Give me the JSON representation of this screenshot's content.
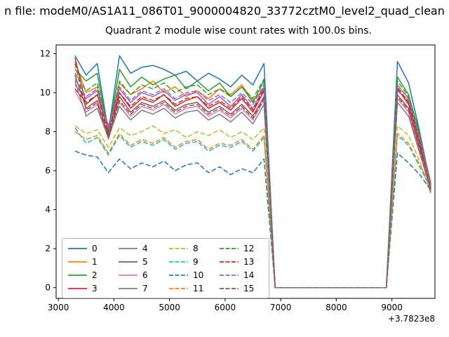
{
  "suptitle": "n file: modeM0/AS1A11_086T01_9000004820_33772cztM0_level2_quad_clean",
  "chart_data": {
    "type": "line",
    "title": "Quadrant 2 module wise count rates with 100.0s bins.",
    "xlabel": "",
    "ylabel": "",
    "x_offset_label": "+3.7823e8",
    "xlim": [
      2960,
      9775
    ],
    "ylim": [
      -0.55,
      12.45
    ],
    "xticks": [
      3000,
      4000,
      5000,
      6000,
      7000,
      8000,
      9000
    ],
    "yticks": [
      0,
      2,
      4,
      6,
      8,
      10,
      12
    ],
    "grid": false,
    "legend_position": "lower left",
    "legend_columns": 4,
    "x": [
      3300,
      3500,
      3700,
      3900,
      4100,
      4300,
      4500,
      4700,
      4900,
      5100,
      5300,
      5500,
      5700,
      5900,
      6100,
      6300,
      6500,
      6700,
      6900,
      7100,
      7300,
      7500,
      7700,
      7900,
      8100,
      8300,
      8500,
      8700,
      8900,
      9100,
      9300,
      9500,
      9700
    ],
    "series": [
      {
        "name": "0",
        "color": "#1f77b4",
        "dash": false,
        "values": [
          11.9,
          10.9,
          11.5,
          8.0,
          11.9,
          11.0,
          11.3,
          11.4,
          11.2,
          10.9,
          11.1,
          10.6,
          11.0,
          10.7,
          10.3,
          10.9,
          10.4,
          11.5,
          0,
          0,
          0,
          0,
          0,
          0,
          0,
          0,
          0,
          0,
          0,
          11.6,
          10.5,
          8.0,
          5.2
        ]
      },
      {
        "name": "1",
        "color": "#ff7f0e",
        "dash": false,
        "values": [
          11.6,
          10.0,
          10.3,
          8.2,
          10.5,
          9.9,
          10.2,
          10.6,
          10.0,
          10.3,
          9.8,
          10.1,
          9.7,
          10.2,
          9.9,
          10.4,
          9.6,
          10.2,
          0,
          0,
          0,
          0,
          0,
          0,
          0,
          0,
          0,
          0,
          0,
          10.4,
          9.7,
          7.6,
          5.1
        ]
      },
      {
        "name": "2",
        "color": "#2ca02c",
        "dash": false,
        "values": [
          11.2,
          10.6,
          11.0,
          7.9,
          11.2,
          10.3,
          10.8,
          10.4,
          10.7,
          10.9,
          10.2,
          10.6,
          10.1,
          10.5,
          9.8,
          10.3,
          9.5,
          10.6,
          0,
          0,
          0,
          0,
          0,
          0,
          0,
          0,
          0,
          0,
          0,
          10.8,
          9.9,
          7.9,
          5.3
        ]
      },
      {
        "name": "3",
        "color": "#d62728",
        "dash": false,
        "values": [
          11.8,
          9.4,
          9.9,
          8.1,
          10.0,
          9.2,
          9.7,
          9.5,
          9.9,
          9.3,
          9.6,
          9.8,
          9.2,
          9.5,
          9.1,
          9.7,
          9.0,
          10.1,
          0,
          0,
          0,
          0,
          0,
          0,
          0,
          0,
          0,
          0,
          0,
          10.2,
          9.4,
          7.4,
          5.0
        ]
      },
      {
        "name": "4",
        "color": "#9467bd",
        "dash": false,
        "values": [
          10.4,
          9.7,
          10.1,
          8.3,
          10.2,
          9.5,
          10.0,
          9.8,
          10.1,
          9.6,
          9.9,
          10.0,
          9.4,
          9.8,
          9.3,
          9.9,
          9.2,
          10.3,
          0,
          0,
          0,
          0,
          0,
          0,
          0,
          0,
          0,
          0,
          0,
          10.1,
          9.6,
          7.7,
          5.4
        ]
      },
      {
        "name": "5",
        "color": "#8c564b",
        "dash": false,
        "values": [
          10.9,
          9.2,
          9.6,
          7.8,
          9.8,
          9.0,
          9.5,
          9.3,
          9.6,
          9.1,
          9.4,
          9.5,
          9.0,
          9.3,
          8.9,
          9.4,
          8.8,
          9.8,
          0,
          0,
          0,
          0,
          0,
          0,
          0,
          0,
          0,
          0,
          0,
          9.9,
          9.2,
          7.2,
          4.9
        ]
      },
      {
        "name": "6",
        "color": "#e377c2",
        "dash": false,
        "values": [
          10.1,
          9.0,
          9.4,
          7.6,
          9.5,
          8.8,
          9.3,
          9.1,
          9.4,
          8.9,
          9.2,
          9.3,
          8.8,
          9.1,
          8.7,
          9.2,
          8.6,
          9.6,
          0,
          0,
          0,
          0,
          0,
          0,
          0,
          0,
          0,
          0,
          0,
          9.7,
          9.0,
          7.0,
          5.2
        ]
      },
      {
        "name": "7",
        "color": "#7f7f7f",
        "dash": false,
        "values": [
          10.6,
          8.8,
          9.2,
          7.7,
          9.3,
          8.6,
          9.1,
          8.9,
          9.2,
          8.7,
          9.0,
          9.1,
          8.6,
          8.9,
          8.5,
          9.0,
          8.4,
          9.4,
          0,
          0,
          0,
          0,
          0,
          0,
          0,
          0,
          0,
          0,
          0,
          9.5,
          8.8,
          6.9,
          5.0
        ]
      },
      {
        "name": "8",
        "color": "#bcbd22",
        "dash": true,
        "values": [
          8.3,
          7.9,
          8.1,
          7.2,
          8.2,
          7.8,
          8.0,
          8.3,
          7.9,
          8.1,
          7.7,
          8.0,
          7.8,
          8.1,
          7.7,
          8.0,
          7.6,
          8.2,
          0,
          0,
          0,
          0,
          0,
          0,
          0,
          0,
          0,
          0,
          0,
          8.3,
          7.8,
          6.5,
          4.8
        ]
      },
      {
        "name": "9",
        "color": "#17becf",
        "dash": true,
        "values": [
          8.2,
          7.4,
          7.7,
          6.8,
          7.8,
          7.2,
          7.5,
          7.3,
          7.6,
          7.1,
          7.4,
          7.5,
          7.0,
          7.3,
          7.2,
          7.5,
          7.0,
          7.7,
          0,
          0,
          0,
          0,
          0,
          0,
          0,
          0,
          0,
          0,
          0,
          7.8,
          7.3,
          6.2,
          5.1
        ]
      },
      {
        "name": "10",
        "color": "#1f77b4",
        "dash": true,
        "values": [
          7.0,
          6.8,
          6.7,
          5.9,
          6.6,
          6.1,
          6.4,
          6.2,
          6.5,
          6.0,
          6.3,
          6.4,
          5.9,
          6.2,
          5.8,
          6.1,
          5.9,
          6.6,
          0,
          0,
          0,
          0,
          0,
          0,
          0,
          0,
          0,
          0,
          0,
          6.9,
          6.4,
          5.8,
          5.0
        ]
      },
      {
        "name": "11",
        "color": "#ff7f0e",
        "dash": true,
        "values": [
          8.0,
          7.6,
          7.8,
          6.9,
          7.9,
          7.3,
          7.6,
          7.4,
          7.7,
          7.2,
          7.5,
          7.6,
          7.1,
          7.4,
          7.3,
          7.6,
          7.1,
          7.8,
          0,
          0,
          0,
          0,
          0,
          0,
          0,
          0,
          0,
          0,
          0,
          7.9,
          7.4,
          6.3,
          5.2
        ]
      },
      {
        "name": "12",
        "color": "#2ca02c",
        "dash": true,
        "values": [
          11.0,
          10.1,
          10.5,
          8.0,
          10.6,
          9.9,
          10.4,
          10.2,
          10.5,
          10.0,
          10.3,
          10.4,
          9.9,
          10.2,
          9.8,
          10.3,
          9.7,
          10.7,
          0,
          0,
          0,
          0,
          0,
          0,
          0,
          0,
          0,
          0,
          0,
          10.6,
          9.8,
          7.8,
          5.3
        ]
      },
      {
        "name": "13",
        "color": "#d62728",
        "dash": true,
        "values": [
          10.2,
          9.5,
          9.9,
          7.9,
          10.0,
          9.3,
          9.8,
          9.6,
          9.9,
          9.4,
          9.7,
          9.8,
          9.3,
          9.6,
          9.2,
          9.8,
          9.1,
          10.2,
          0,
          0,
          0,
          0,
          0,
          0,
          0,
          0,
          0,
          0,
          0,
          10.3,
          9.5,
          7.5,
          5.1
        ]
      },
      {
        "name": "14",
        "color": "#9467bd",
        "dash": true,
        "values": [
          10.7,
          9.8,
          10.2,
          8.1,
          10.3,
          9.6,
          10.1,
          9.9,
          10.2,
          9.7,
          10.0,
          10.1,
          9.6,
          9.9,
          9.5,
          10.0,
          9.4,
          10.4,
          0,
          0,
          0,
          0,
          0,
          0,
          0,
          0,
          0,
          0,
          0,
          10.4,
          9.7,
          7.7,
          5.2
        ]
      },
      {
        "name": "15",
        "color": "#8c564b",
        "dash": true,
        "values": [
          11.5,
          9.1,
          9.5,
          7.7,
          9.6,
          8.9,
          9.4,
          9.2,
          9.5,
          9.0,
          9.3,
          9.4,
          8.9,
          9.2,
          8.8,
          9.3,
          8.7,
          9.7,
          0,
          0,
          0,
          0,
          0,
          0,
          0,
          0,
          0,
          0,
          0,
          9.8,
          9.1,
          7.1,
          5.0
        ]
      }
    ]
  }
}
